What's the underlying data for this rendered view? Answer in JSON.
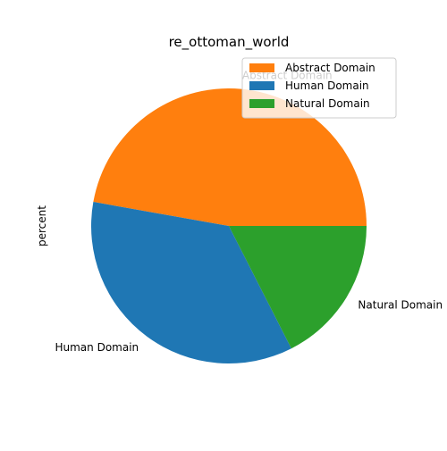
{
  "chart_data": {
    "type": "pie",
    "title": "re_ottoman_world",
    "ylabel": "percent",
    "categories": [
      "Abstract Domain",
      "Human Domain",
      "Natural Domain"
    ],
    "values": [
      47.2,
      35.3,
      17.5
    ],
    "colors": [
      "#ff7f0e",
      "#1f77b4",
      "#2ca02c"
    ],
    "legend": {
      "placement": "top-right",
      "entries": [
        "Abstract Domain",
        "Human Domain",
        "Natural Domain"
      ]
    },
    "start_angle_deg": 0,
    "direction": "counterclockwise"
  }
}
